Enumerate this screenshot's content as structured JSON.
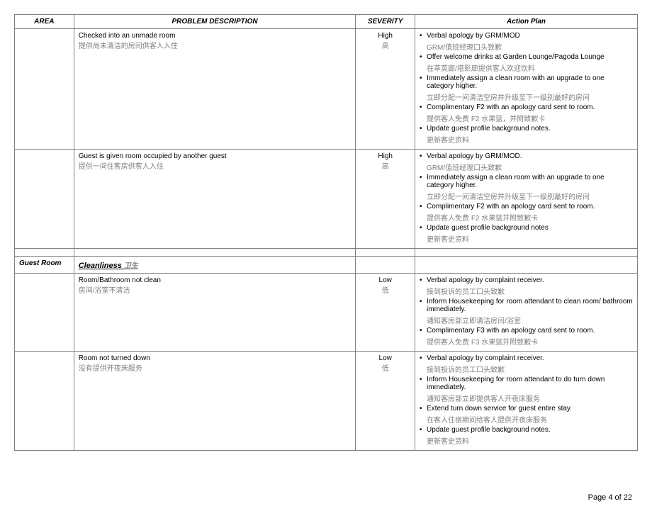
{
  "headers": {
    "area": "AREA",
    "problem": "PROBLEM DESCRIPTION",
    "severity": "SEVERITY",
    "action": "Action Plan"
  },
  "rows": [
    {
      "area": "",
      "problem_en": "Checked into an unmade room",
      "problem_zh": "提供尚未清洁的房间供客人入住",
      "severity_en": "High",
      "severity_zh": "高",
      "actions": [
        {
          "en": "Verbal apology by GRM/MOD",
          "zh": "GRM/值班经理口头致歉"
        },
        {
          "en": "Offer welcome drinks at Garden Lounge/Pagoda Lounge",
          "zh": "在萃英廊/塔影廊提供客人欢迎饮料"
        },
        {
          "en": "Immediately assign a clean room with an upgrade to one category higher.",
          "zh": "立即分配一间清洁空房并升级至下一级别最好的房间"
        },
        {
          "en": "Complimentary F2 with an apology card sent to room.",
          "zh": "提供客人免费 F2 水果篮，并附致歉卡"
        },
        {
          "en": "Update guest profile background notes.",
          "zh": "更新客史资料"
        }
      ]
    },
    {
      "area": "",
      "problem_en": "Guest is given room occupied by another guest",
      "problem_zh": "提供一间住客房供客人入住",
      "severity_en": "High",
      "severity_zh": "高",
      "actions": [
        {
          "en": "Verbal apology by GRM/MOD.",
          "zh": "GRM/值班经理口头致歉"
        },
        {
          "en": "Immediately assign a clean room with an upgrade to one category higher.",
          "zh": "立即分配一间清洁空房并升级至下一级别最好的房间"
        },
        {
          "en": "Complimentary F2 with an apology card sent to room.",
          "zh": "提供客人免费 F2 水果篮并附致歉卡"
        },
        {
          "en": "Update guest profile background notes",
          "zh": "更新客史资料"
        }
      ]
    }
  ],
  "section": {
    "area": "Guest Room",
    "title_en": "Cleanliness",
    "title_zh": "卫生"
  },
  "rows2": [
    {
      "area": "",
      "problem_en": "Room/Bathroom not clean",
      "problem_zh": "房间/浴室不清洁",
      "severity_en": "Low",
      "severity_zh": "低",
      "actions": [
        {
          "en": "Verbal apology by complaint receiver.",
          "zh": "接到投诉的员工口头致歉"
        },
        {
          "en": "Inform Housekeeping for room attendant to clean room/ bathroom immediately.",
          "zh": "通知客房部立即清洁房间/浴室"
        },
        {
          "en": "Complimentary F3 with an apology card sent to room.",
          "zh": "提供客人免费 F3 水果篮并附致歉卡"
        }
      ]
    },
    {
      "area": "",
      "problem_en": "Room not turned down",
      "problem_zh": "没有提供开夜床服务",
      "severity_en": "Low",
      "severity_zh": "低",
      "actions": [
        {
          "en": "Verbal apology by complaint receiver.",
          "zh": "接到投诉的员工口头致歉"
        },
        {
          "en": "Inform Housekeeping for room attendant to do turn down immediately.",
          "zh": "通知客房部立即提供客人开夜床服务"
        },
        {
          "en": "Extend turn down service for guest entire stay.",
          "zh": "在客人住宿期间给客人提供开夜床服务"
        },
        {
          "en": "Update guest profile background notes.",
          "zh": "更新客史资料"
        }
      ]
    }
  ],
  "footer": "Page 4 of 22"
}
